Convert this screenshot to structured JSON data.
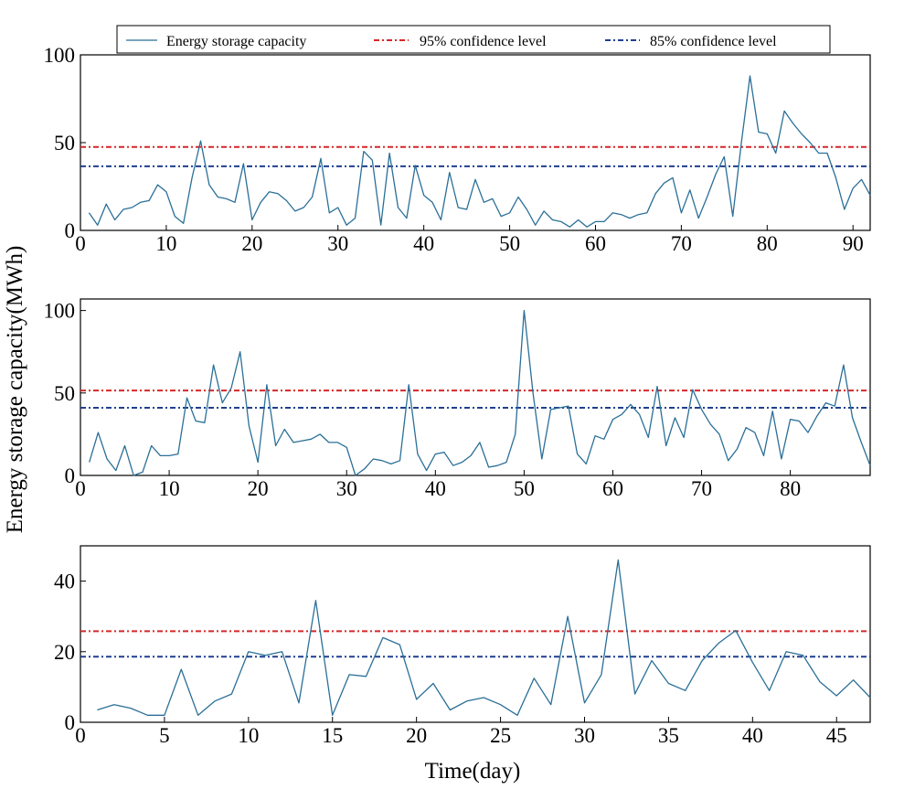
{
  "legend": {
    "items": [
      {
        "label": "Energy storage capacity",
        "color": "#2a6f97",
        "style": "solid"
      },
      {
        "label": "95% confidence level",
        "color": "#d62728",
        "style": "dashdot"
      },
      {
        "label": "85% confidence level",
        "color": "#1f3f8f",
        "style": "dashdot"
      }
    ]
  },
  "ylabel": "Energy storage capacity(MWh)",
  "xlabel": "Time(day)",
  "chart_data": [
    {
      "type": "line",
      "xlim": [
        0,
        92
      ],
      "ylim": [
        0,
        100
      ],
      "xticks": [
        0,
        10,
        20,
        30,
        40,
        50,
        60,
        70,
        80,
        90
      ],
      "yticks": [
        0,
        50,
        100
      ],
      "conf95": 47.5,
      "conf85": 36.5,
      "x": [
        1,
        2,
        3,
        4,
        5,
        6,
        7,
        8,
        9,
        10,
        11,
        12,
        13,
        14,
        15,
        16,
        17,
        18,
        19,
        20,
        21,
        22,
        23,
        24,
        25,
        26,
        27,
        28,
        29,
        30,
        31,
        32,
        33,
        34,
        35,
        36,
        37,
        38,
        39,
        40,
        41,
        42,
        43,
        44,
        45,
        46,
        47,
        48,
        49,
        50,
        51,
        52,
        53,
        54,
        55,
        56,
        57,
        58,
        59,
        60,
        61,
        62,
        63,
        64,
        65,
        66,
        67,
        68,
        69,
        70,
        71,
        72,
        73,
        74,
        75,
        76,
        77,
        78,
        79,
        80,
        81,
        82,
        83,
        84,
        85,
        86,
        87,
        88,
        89,
        90,
        91,
        92
      ],
      "values": [
        10,
        3,
        15,
        6,
        12,
        13,
        16,
        17,
        26,
        22,
        8,
        4,
        30,
        51,
        26,
        19,
        18,
        16,
        38,
        6,
        16,
        22,
        21,
        17,
        11,
        13,
        19,
        41,
        10,
        13,
        3,
        7,
        45,
        40,
        3,
        44,
        13,
        7,
        37,
        20,
        16,
        6,
        33,
        13,
        12,
        29,
        16,
        18,
        8,
        10,
        19,
        12,
        3,
        11,
        6,
        5,
        2,
        6,
        2,
        5,
        5,
        10,
        9,
        7,
        9,
        10,
        21,
        27,
        30,
        10,
        23,
        7,
        19,
        32,
        42,
        8,
        50,
        88,
        56,
        55,
        44,
        68,
        61,
        55,
        50,
        44,
        44,
        30,
        12,
        24,
        29,
        20
      ]
    },
    {
      "type": "line",
      "xlim": [
        0,
        89
      ],
      "ylim": [
        0,
        107
      ],
      "xticks": [
        0,
        10,
        20,
        30,
        40,
        50,
        60,
        70,
        80
      ],
      "yticks": [
        0,
        50,
        100
      ],
      "conf95": 51.5,
      "conf85": 41,
      "x": [
        1,
        2,
        3,
        4,
        5,
        6,
        7,
        8,
        9,
        10,
        11,
        12,
        13,
        14,
        15,
        16,
        17,
        18,
        19,
        20,
        21,
        22,
        23,
        24,
        25,
        26,
        27,
        28,
        29,
        30,
        31,
        32,
        33,
        34,
        35,
        36,
        37,
        38,
        39,
        40,
        41,
        42,
        43,
        44,
        45,
        46,
        47,
        48,
        49,
        50,
        51,
        52,
        53,
        54,
        55,
        56,
        57,
        58,
        59,
        60,
        61,
        62,
        63,
        64,
        65,
        66,
        67,
        68,
        69,
        70,
        71,
        72,
        73,
        74,
        75,
        76,
        77,
        78,
        79,
        80,
        81,
        82,
        83,
        84,
        85,
        86,
        87,
        88,
        89
      ],
      "values": [
        8,
        26,
        10,
        3,
        18,
        0,
        2,
        18,
        12,
        12,
        13,
        47,
        33,
        32,
        67,
        44,
        53,
        75,
        30,
        8,
        55,
        18,
        28,
        20,
        21,
        22,
        25,
        20,
        20,
        17,
        0,
        4,
        10,
        9,
        7,
        9,
        55,
        13,
        3,
        13,
        14,
        6,
        8,
        12,
        20,
        5,
        6,
        8,
        25,
        100,
        50,
        10,
        40,
        41,
        42,
        13,
        7,
        24,
        22,
        34,
        37,
        43,
        37,
        23,
        54,
        18,
        35,
        23,
        52,
        40,
        31,
        25,
        9,
        16,
        29,
        26,
        12,
        39,
        10,
        34,
        33,
        26,
        36,
        44,
        42,
        67,
        35,
        20,
        6
      ]
    },
    {
      "type": "line",
      "xlim": [
        0,
        47
      ],
      "ylim": [
        0,
        50
      ],
      "xticks": [
        0,
        5,
        10,
        15,
        20,
        25,
        30,
        35,
        40,
        45
      ],
      "yticks": [
        0,
        20,
        40
      ],
      "conf95": 25.8,
      "conf85": 18.6,
      "x": [
        1,
        2,
        3,
        4,
        5,
        6,
        7,
        8,
        9,
        10,
        11,
        12,
        13,
        14,
        15,
        16,
        17,
        18,
        19,
        20,
        21,
        22,
        23,
        24,
        25,
        26,
        27,
        28,
        29,
        30,
        31,
        32,
        33,
        34,
        35,
        36,
        37,
        38,
        39,
        40,
        41,
        42,
        43,
        44,
        45,
        46,
        47
      ],
      "values": [
        3.5,
        5,
        4,
        2,
        2,
        15,
        2,
        6,
        8,
        20,
        19,
        20,
        5.5,
        34.5,
        2,
        13.5,
        13,
        24,
        22,
        6.5,
        11,
        3.5,
        6,
        7,
        5,
        2,
        12.5,
        5,
        30,
        5.5,
        13.5,
        46,
        8,
        17.5,
        11,
        9,
        17.5,
        22.5,
        26,
        17,
        9,
        20,
        19,
        11.5,
        7.5,
        12,
        7
      ]
    }
  ]
}
